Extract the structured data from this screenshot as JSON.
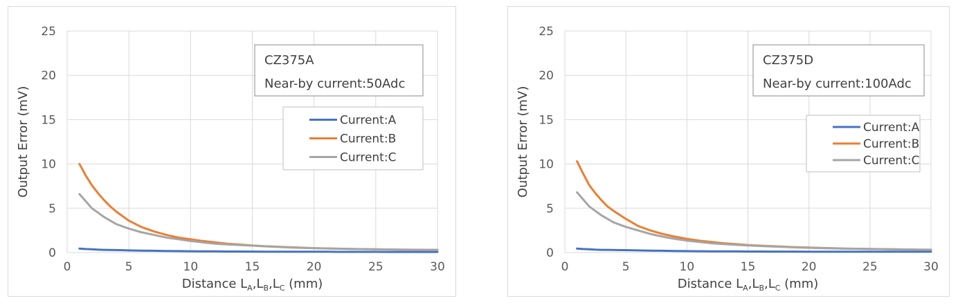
{
  "chart_data": [
    {
      "type": "line",
      "xlabel": {
        "main": "Distance L",
        "s1": "A",
        "c1": ",L",
        "s2": "B",
        "c2": ",L",
        "s3": "C",
        "tail": " (mm)"
      },
      "ylabel": "Output Error (mV)",
      "xlim": [
        0,
        30
      ],
      "ylim": [
        0,
        25
      ],
      "xticks": [
        "0",
        "5",
        "10",
        "15",
        "20",
        "25",
        "30"
      ],
      "yticks": [
        "0",
        "5",
        "10",
        "15",
        "20",
        "25"
      ],
      "grid": true,
      "legend_position": "right",
      "annotation": [
        "CZ375A",
        "Near-by current:50Adc"
      ],
      "x": [
        1,
        1.5,
        2,
        2.5,
        3,
        3.5,
        4,
        5,
        6,
        7,
        8,
        9,
        10,
        11,
        12,
        13,
        14,
        15,
        16,
        17,
        18,
        19,
        20,
        21,
        22,
        23,
        24,
        25,
        26,
        27,
        28,
        29,
        30
      ],
      "series": [
        {
          "name": "Current:A",
          "color": "#4472C4",
          "values": [
            0.45,
            0.4,
            0.37,
            0.33,
            0.3,
            0.29,
            0.28,
            0.24,
            0.22,
            0.2,
            0.18,
            0.16,
            0.15,
            0.14,
            0.13,
            0.12,
            0.12,
            0.11,
            0.1,
            0.1,
            0.1,
            0.09,
            0.09,
            0.09,
            0.08,
            0.08,
            0.08,
            0.08,
            0.07,
            0.07,
            0.07,
            0.07,
            0.07
          ]
        },
        {
          "name": "Current:B",
          "color": "#ED7D31",
          "values": [
            10.0,
            8.7,
            7.6,
            6.7,
            5.9,
            5.2,
            4.6,
            3.6,
            2.9,
            2.4,
            2.0,
            1.7,
            1.5,
            1.3,
            1.15,
            1.0,
            0.9,
            0.8,
            0.72,
            0.66,
            0.6,
            0.55,
            0.5,
            0.47,
            0.44,
            0.41,
            0.39,
            0.37,
            0.35,
            0.33,
            0.32,
            0.31,
            0.3
          ]
        },
        {
          "name": "Current:C",
          "color": "#A5A5A5",
          "values": [
            6.6,
            5.8,
            5.0,
            4.5,
            4.0,
            3.6,
            3.2,
            2.7,
            2.3,
            2.0,
            1.7,
            1.5,
            1.3,
            1.15,
            1.0,
            0.92,
            0.85,
            0.78,
            0.7,
            0.64,
            0.58,
            0.53,
            0.5,
            0.46,
            0.43,
            0.4,
            0.38,
            0.36,
            0.34,
            0.32,
            0.31,
            0.3,
            0.3
          ]
        }
      ]
    },
    {
      "type": "line",
      "xlabel": {
        "main": "Distance L",
        "s1": "A",
        "c1": ",L",
        "s2": "B",
        "c2": ",L",
        "s3": "C",
        "tail": " (mm)"
      },
      "ylabel": "Output Error (mV)",
      "xlim": [
        0,
        30
      ],
      "ylim": [
        0,
        25
      ],
      "xticks": [
        "0",
        "5",
        "10",
        "15",
        "20",
        "25",
        "30"
      ],
      "yticks": [
        "0",
        "5",
        "10",
        "15",
        "20",
        "25"
      ],
      "grid": true,
      "legend_position": "right",
      "annotation": [
        "CZ375D",
        "Near-by current:100Adc"
      ],
      "x": [
        1,
        1.5,
        2,
        2.5,
        3,
        3.5,
        4,
        5,
        6,
        7,
        8,
        9,
        10,
        11,
        12,
        13,
        14,
        15,
        16,
        17,
        18,
        19,
        20,
        21,
        22,
        23,
        24,
        25,
        26,
        27,
        28,
        29,
        30
      ],
      "series": [
        {
          "name": "Current:A",
          "color": "#4472C4",
          "values": [
            0.45,
            0.4,
            0.37,
            0.33,
            0.3,
            0.3,
            0.29,
            0.27,
            0.24,
            0.22,
            0.2,
            0.18,
            0.16,
            0.15,
            0.14,
            0.13,
            0.13,
            0.12,
            0.12,
            0.11,
            0.11,
            0.11,
            0.1,
            0.1,
            0.1,
            0.1,
            0.09,
            0.09,
            0.09,
            0.09,
            0.09,
            0.09,
            0.09
          ]
        },
        {
          "name": "Current:B",
          "color": "#ED7D31",
          "values": [
            10.3,
            8.9,
            7.6,
            6.7,
            5.9,
            5.2,
            4.7,
            3.8,
            3.0,
            2.5,
            2.1,
            1.8,
            1.55,
            1.35,
            1.2,
            1.05,
            0.95,
            0.85,
            0.78,
            0.72,
            0.66,
            0.6,
            0.56,
            0.52,
            0.48,
            0.45,
            0.43,
            0.41,
            0.39,
            0.37,
            0.35,
            0.33,
            0.32
          ]
        },
        {
          "name": "Current:C",
          "color": "#A5A5A5",
          "values": [
            6.8,
            6.0,
            5.2,
            4.7,
            4.2,
            3.8,
            3.4,
            2.9,
            2.5,
            2.1,
            1.8,
            1.55,
            1.35,
            1.2,
            1.05,
            0.95,
            0.87,
            0.8,
            0.74,
            0.68,
            0.63,
            0.58,
            0.54,
            0.5,
            0.47,
            0.44,
            0.42,
            0.4,
            0.38,
            0.36,
            0.34,
            0.32,
            0.31
          ]
        }
      ]
    }
  ]
}
